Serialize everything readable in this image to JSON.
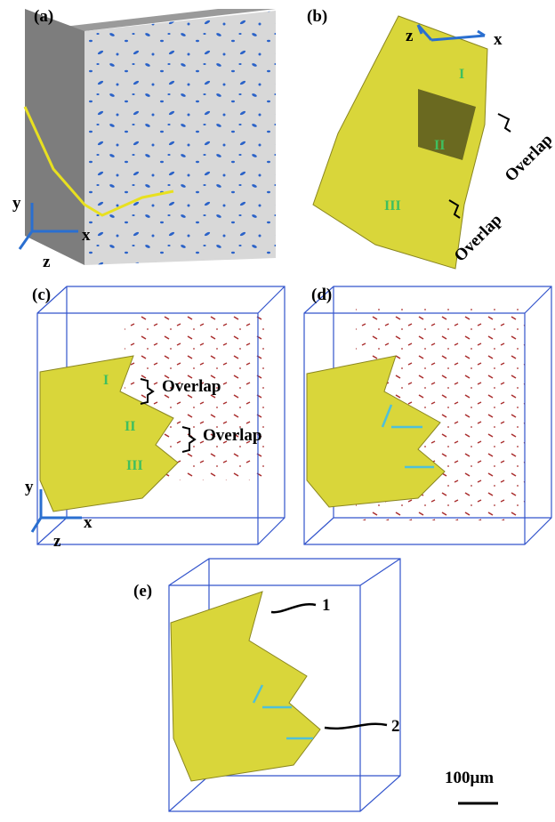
{
  "panels": [
    {
      "label": "(a)",
      "axes": {
        "x": "x",
        "y": "y",
        "z": "z"
      }
    },
    {
      "label": "(b)",
      "axes": {
        "x": "x",
        "z": "z"
      },
      "regions": [
        "I",
        "II",
        "III"
      ],
      "annotations": [
        "Overlap",
        "Overlap"
      ]
    },
    {
      "label": "(c)",
      "axes": {
        "x": "x",
        "y": "y",
        "z": "z"
      },
      "regions": [
        "I",
        "II",
        "III"
      ],
      "annotations": [
        "Overlap",
        "Overlap"
      ]
    },
    {
      "label": "(d)"
    },
    {
      "label": "(e)",
      "annotations": [
        "1",
        "2"
      ]
    }
  ],
  "scale_bar": "100μm"
}
